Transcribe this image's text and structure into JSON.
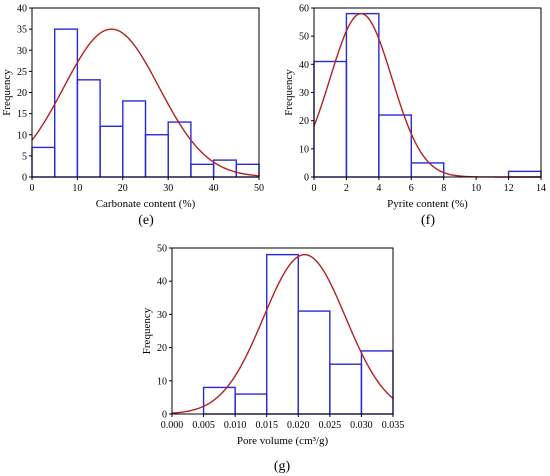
{
  "colors": {
    "bar_stroke": "#2b2bd6",
    "curve": "#b22222",
    "axis": "#000000"
  },
  "chart_data": [
    {
      "type": "bar",
      "panel": "(e)",
      "xlabel": "Carbonate content (%)",
      "ylabel": "Frequency",
      "xlim": [
        0,
        50
      ],
      "ylim": [
        0,
        40
      ],
      "xticks": [
        0,
        10,
        20,
        30,
        40,
        50
      ],
      "yticks": [
        0,
        5,
        10,
        15,
        20,
        25,
        30,
        35,
        40
      ],
      "xtick_labels": [
        "0",
        "10",
        "20",
        "30",
        "40",
        "50"
      ],
      "ytick_labels": [
        "0",
        "5",
        "10",
        "15",
        "20",
        "25",
        "30",
        "35",
        "40"
      ],
      "bins": [
        [
          0,
          5
        ],
        [
          5,
          10
        ],
        [
          10,
          15
        ],
        [
          15,
          20
        ],
        [
          20,
          25
        ],
        [
          25,
          30
        ],
        [
          30,
          35
        ],
        [
          35,
          40
        ],
        [
          40,
          45
        ],
        [
          45,
          50
        ]
      ],
      "values": [
        7,
        35,
        23,
        12,
        18,
        10,
        13,
        3,
        4,
        3
      ],
      "fit": {
        "type": "normal",
        "mean": 17.5,
        "sd": 10.5,
        "peak": 35
      }
    },
    {
      "type": "bar",
      "panel": "(f)",
      "xlabel": "Pyrite content (%)",
      "ylabel": "Frequency",
      "xlim": [
        0,
        14
      ],
      "ylim": [
        0,
        60
      ],
      "xticks": [
        0,
        2,
        4,
        6,
        8,
        10,
        12,
        14
      ],
      "yticks": [
        0,
        10,
        20,
        30,
        40,
        50,
        60
      ],
      "xtick_labels": [
        "0",
        "2",
        "4",
        "6",
        "8",
        "10",
        "12",
        "14"
      ],
      "ytick_labels": [
        "0",
        "10",
        "20",
        "30",
        "40",
        "50",
        "60"
      ],
      "bins": [
        [
          0,
          2
        ],
        [
          2,
          4
        ],
        [
          4,
          6
        ],
        [
          6,
          8
        ],
        [
          12,
          14
        ]
      ],
      "values": [
        41,
        58,
        22,
        5,
        2
      ],
      "fit": {
        "type": "normal",
        "mean": 2.9,
        "sd": 1.9,
        "peak": 58
      }
    },
    {
      "type": "bar",
      "panel": "(g)",
      "xlabel": "Pore volume (cm³/g)",
      "ylabel": "Frequency",
      "xlim": [
        0,
        0.035
      ],
      "ylim": [
        0,
        50
      ],
      "xticks": [
        0,
        0.005,
        0.01,
        0.015,
        0.02,
        0.025,
        0.03,
        0.035
      ],
      "yticks": [
        0,
        10,
        20,
        30,
        40,
        50
      ],
      "xtick_labels": [
        "0.000",
        "0.005",
        "0.010",
        "0.015",
        "0.020",
        "0.025",
        "0.030",
        "0.035"
      ],
      "ytick_labels": [
        "0",
        "10",
        "20",
        "30",
        "40",
        "50"
      ],
      "bins": [
        [
          0.005,
          0.01
        ],
        [
          0.01,
          0.015
        ],
        [
          0.015,
          0.02
        ],
        [
          0.02,
          0.025
        ],
        [
          0.025,
          0.03
        ],
        [
          0.03,
          0.035
        ]
      ],
      "values": [
        8,
        6,
        48,
        31,
        15,
        19
      ],
      "fit": {
        "type": "normal",
        "mean": 0.021,
        "sd": 0.0065,
        "peak": 48
      }
    }
  ]
}
